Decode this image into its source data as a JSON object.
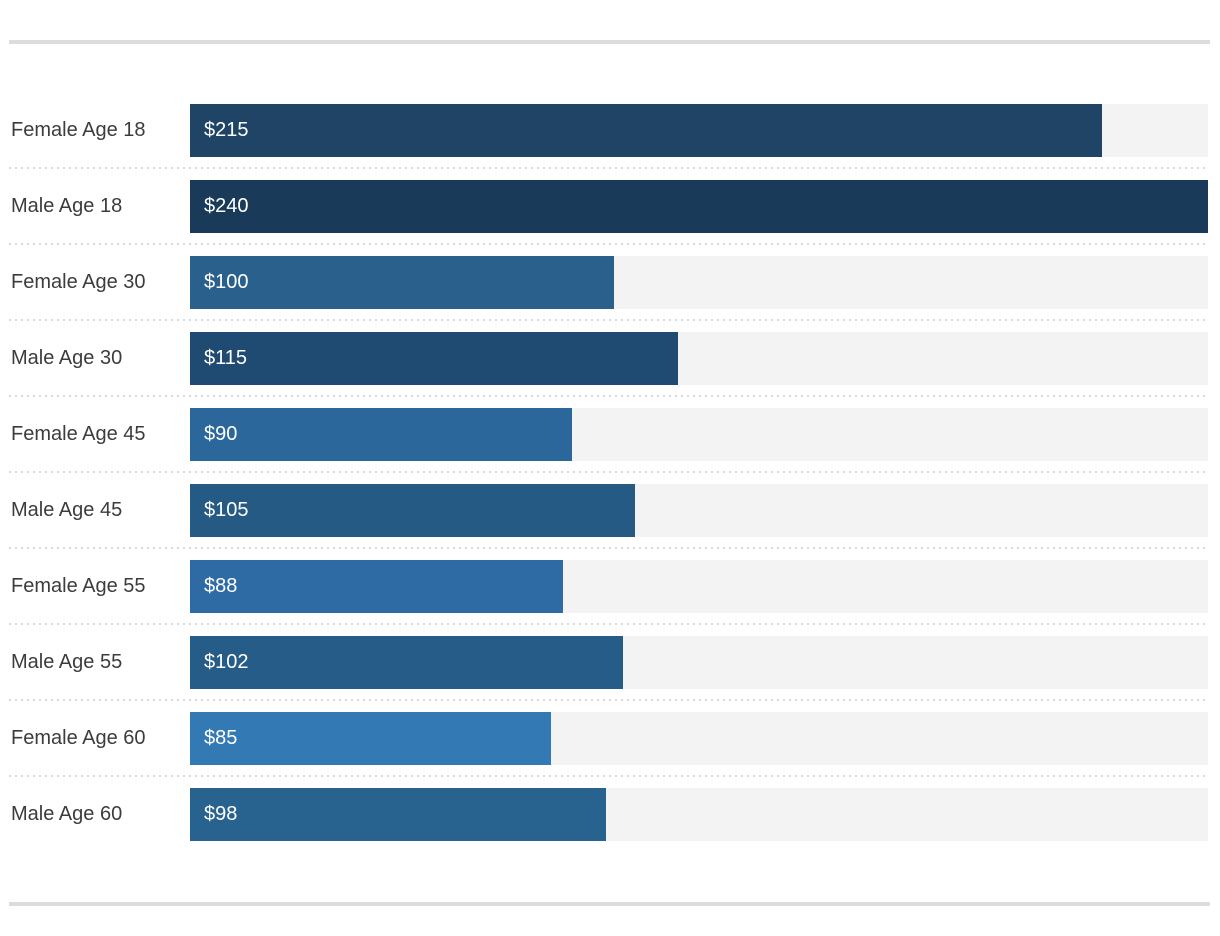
{
  "chart_data": {
    "type": "bar",
    "orientation": "horizontal",
    "title": "",
    "categories": [
      "Female Age 18",
      "Male Age 18",
      "Female Age 30",
      "Male Age 30",
      "Female Age 45",
      "Male Age 45",
      "Female Age 55",
      "Male Age 55",
      "Female Age 60",
      "Male Age 60"
    ],
    "values": [
      215,
      240,
      100,
      115,
      90,
      105,
      88,
      102,
      85,
      98
    ],
    "value_labels": [
      "$215",
      "$240",
      "$100",
      "$115",
      "$90",
      "$105",
      "$88",
      "$102",
      "$85",
      "$98"
    ],
    "bar_colors": [
      "#1f4466",
      "#193a58",
      "#2a608c",
      "#1f4a71",
      "#2c679c",
      "#245a84",
      "#2e6ba4",
      "#255c88",
      "#3379b4",
      "#28628f"
    ],
    "xlim": [
      0,
      240
    ],
    "grid": false,
    "legend": false,
    "layout_hints": {
      "bars_fill_to_max_value": 240,
      "row_separator_style": "dotted"
    },
    "colors": {
      "track": "#f3f3f3",
      "label_text": "#3c3c3c",
      "value_text": "#ffffff",
      "row_separator": "#d9d9d9",
      "page_rule": "#dcdcdc",
      "background": "#ffffff"
    }
  }
}
